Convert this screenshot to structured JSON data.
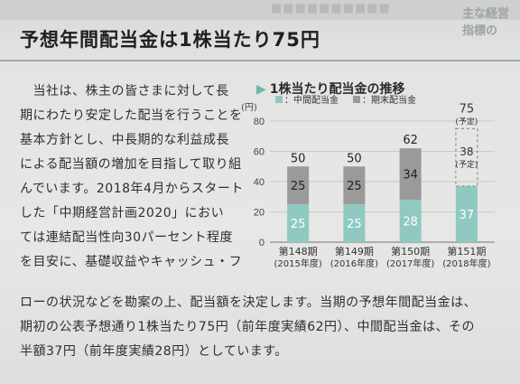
{
  "header": {
    "bleed_text": "■■■■■■■■■■",
    "bleed_right": "主な経営指標の",
    "title": "予想年間配当金は1株当たり75円"
  },
  "body": {
    "lines": [
      "　当社は、株主の皆さまに対して長",
      "期にわたり安定した配当を行うことを",
      "基本方針とし、中長期的な利益成長",
      "による配当額の増加を目指して取り組",
      "んでいます。2018年4月からスタート",
      "した「中期経営計画2020」におい",
      "ては連結配当性向30パーセント程度",
      "を目安に、基礎収益やキャッシュ・フ"
    ],
    "wide_lines": [
      "ローの状況などを勘案の上、配当額を決定します。当期の予想年間配当金は、",
      "期初の公表予想通り1株当たり75円（前年度実績62円）、中間配当金は、その",
      "半額37円（前年度実績28円）としています。"
    ]
  },
  "chart_data": {
    "type": "bar",
    "title": "1株当たり配当金の推移",
    "unit_label": "(円)",
    "categories": [
      "第148期",
      "第149期",
      "第150期",
      "第151期"
    ],
    "subcategories": [
      "(2015年度)",
      "(2016年度)",
      "(2017年度)",
      "(2018年度)"
    ],
    "ylim": [
      0,
      80
    ],
    "yticks": [
      0,
      20,
      40,
      60,
      80
    ],
    "series": [
      {
        "name": "中間配当金",
        "values": [
          25,
          25,
          28,
          37
        ]
      },
      {
        "name": "期末配当金",
        "values": [
          25,
          25,
          34,
          38
        ]
      }
    ],
    "totals": [
      "50",
      "50",
      "62",
      "75"
    ],
    "forecast_note": "(予定)",
    "legend_placement": "top",
    "colors": {
      "interim": "#8fc9c1",
      "final": "#9a9a9a",
      "forecast_border": "#8f8f8f"
    }
  }
}
